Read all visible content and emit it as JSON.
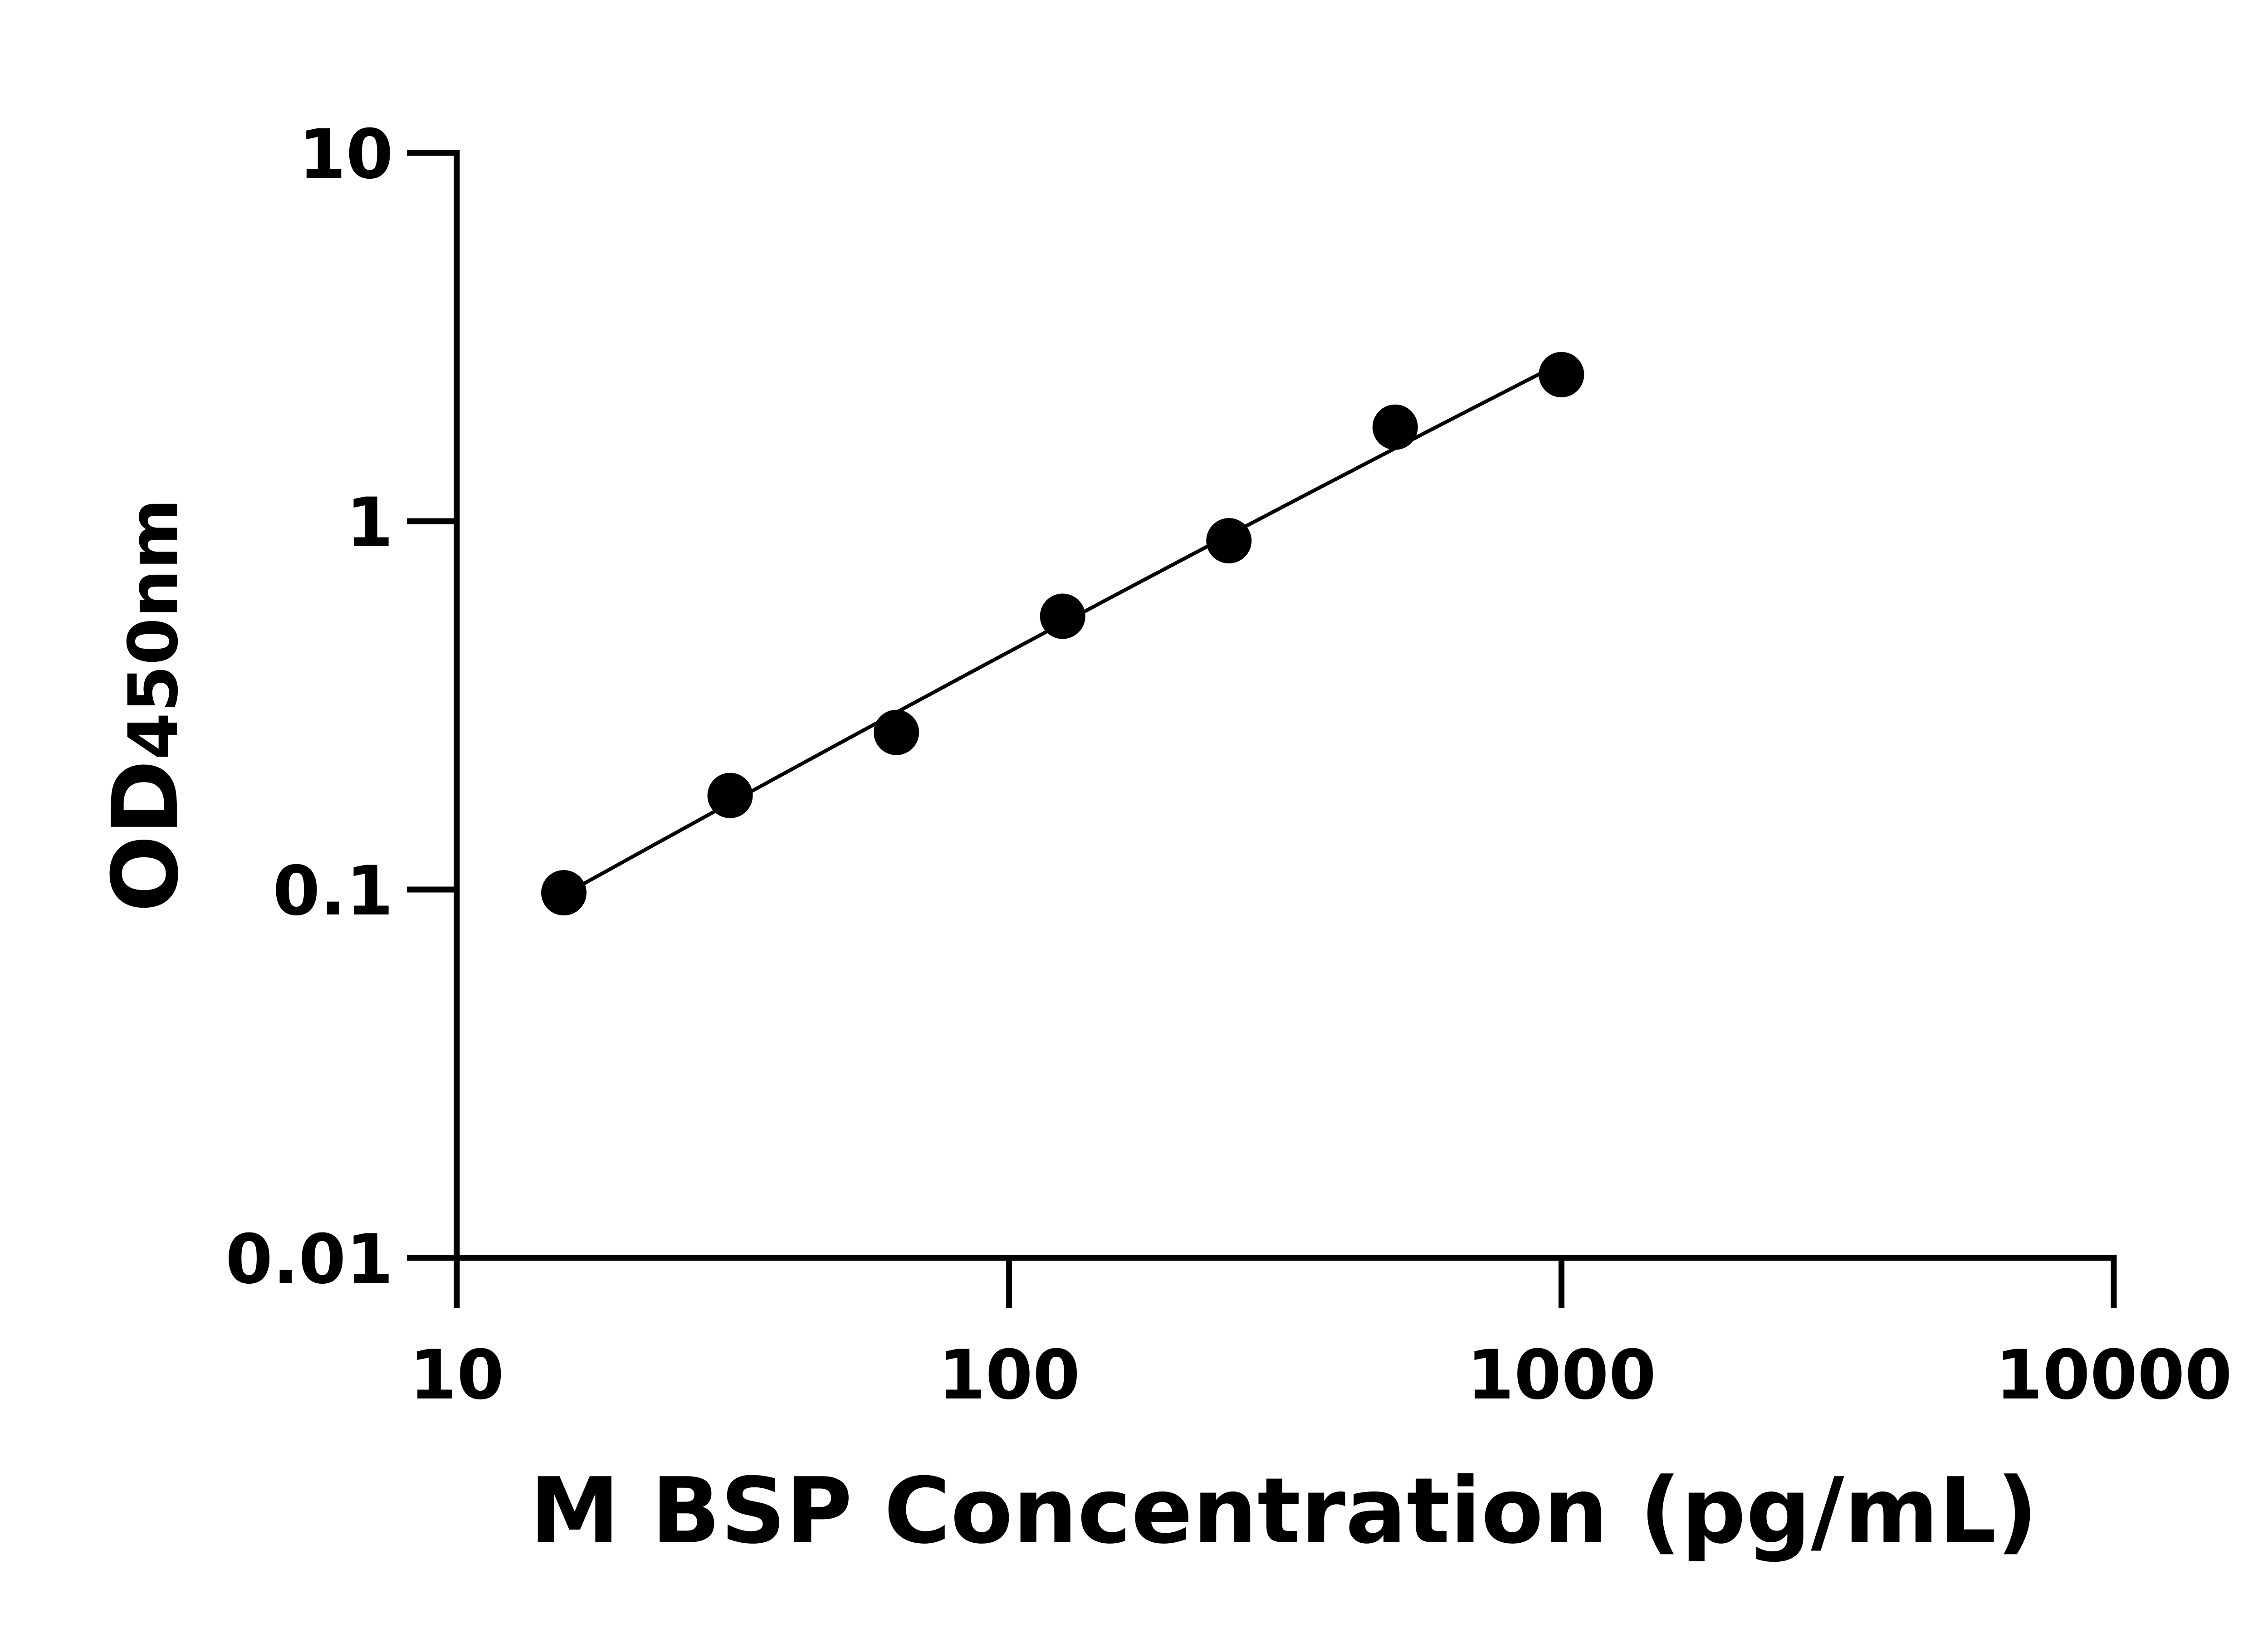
{
  "chart_data": {
    "type": "scatter",
    "title": "",
    "xlabel": "M BSP Concentration (pg/mL)",
    "ylabel_main": "OD",
    "ylabel_sub": "450nm",
    "x_scale": "log",
    "y_scale": "log",
    "xlim": [
      10,
      10000
    ],
    "ylim": [
      0.01,
      10
    ],
    "x_ticks": [
      "10",
      "100",
      "1000",
      "10000"
    ],
    "y_ticks": [
      "0.01",
      "0.1",
      "1",
      "10"
    ],
    "grid": false,
    "legend": "none",
    "fit_line": "smooth curve through points",
    "points": [
      {
        "x": 15.625,
        "y": 0.098
      },
      {
        "x": 31.25,
        "y": 0.18
      },
      {
        "x": 62.5,
        "y": 0.267
      },
      {
        "x": 125,
        "y": 0.552
      },
      {
        "x": 250,
        "y": 0.885
      },
      {
        "x": 500,
        "y": 1.8
      },
      {
        "x": 1000,
        "y": 2.5
      }
    ],
    "color": "#000000"
  }
}
